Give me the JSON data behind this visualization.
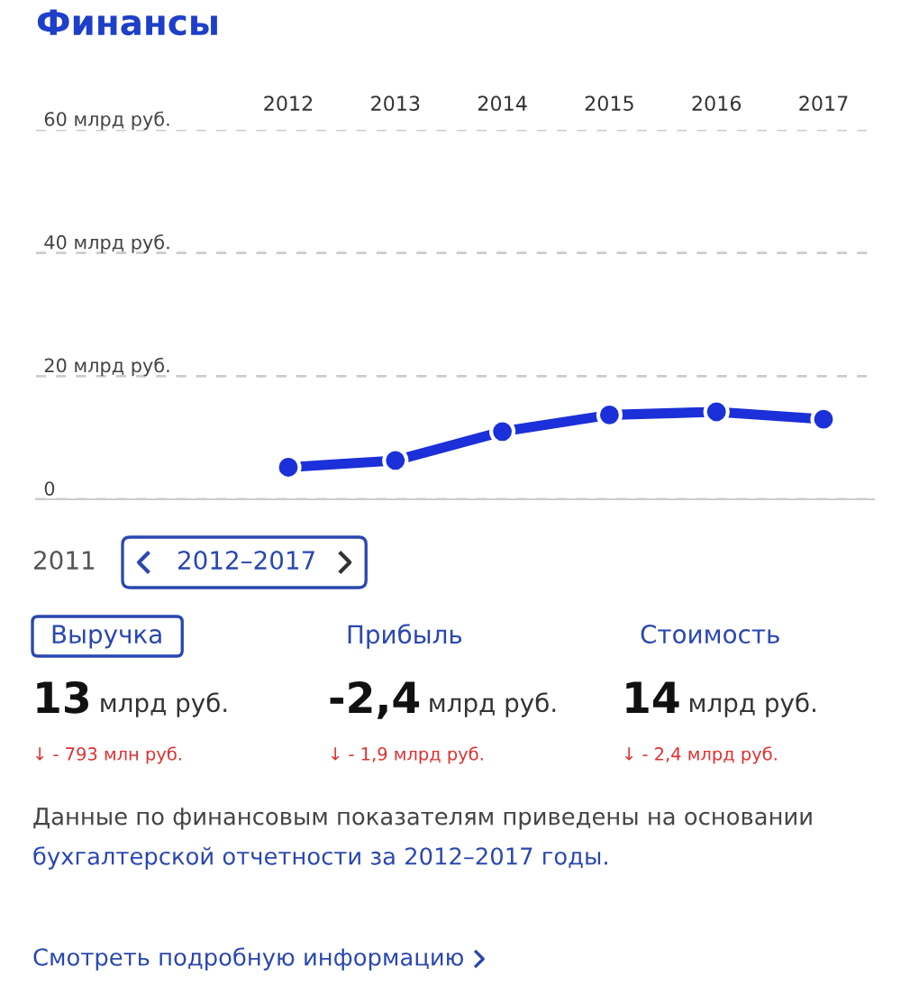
{
  "chart_data": [
    {
      "type": "line",
      "title": "Финансы",
      "categories": [
        "2012",
        "2013",
        "2014",
        "2015",
        "2016",
        "2017"
      ],
      "series": [
        {
          "color": "#1b30d8",
          "values": [
            5.2,
            6.3,
            11.0,
            13.7,
            14.2,
            13.0
          ]
        }
      ],
      "ylim": [
        0,
        60
      ],
      "yticks": [
        {
          "value": 0,
          "label": "0"
        },
        {
          "value": 20,
          "label": "20 млрд руб."
        },
        {
          "value": 40,
          "label": "40 млрд руб."
        },
        {
          "value": 60,
          "label": "60 млрд руб."
        }
      ],
      "grid": "y",
      "marker": "circle",
      "line_style": "solid"
    },
    {
      "type": "other",
      "annotations": [
        "2011",
        "2012–2017",
        "Выручка",
        "Прибыль",
        "Стоимость",
        "13",
        "млрд руб.",
        "-2,4",
        "млрд руб.",
        "14",
        "млрд руб.",
        "↓ - 793 млн руб.",
        "↓ - 1,9 млрд руб.",
        "↓ - 2,4 млрд руб.",
        "Данные по финансовым показателям приведены на основании",
        "бухгалтерской отчетности за 2012–2017 годы.",
        "Смотреть подробную информацию"
      ]
    }
  ]
}
